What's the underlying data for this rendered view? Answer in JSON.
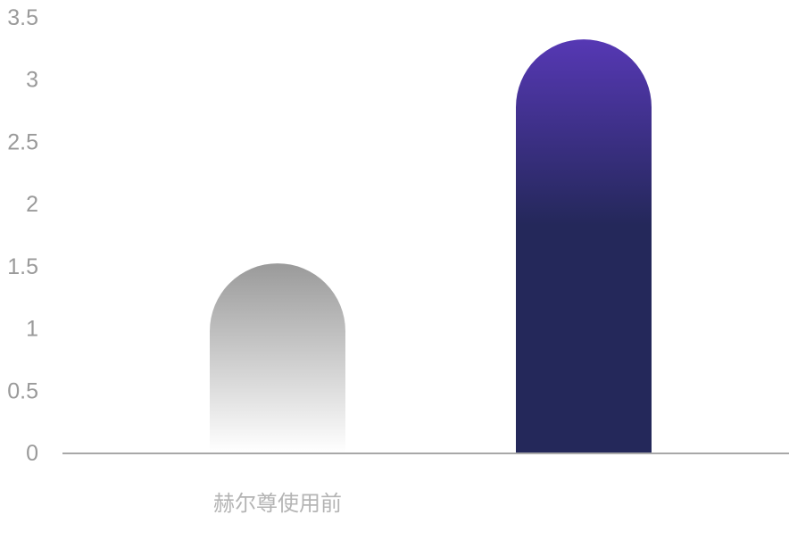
{
  "chart_data": {
    "type": "bar",
    "categories": [
      "赫尔尊使用前",
      ""
    ],
    "values": [
      1.52,
      3.32
    ],
    "ylim": [
      0,
      3.5
    ],
    "yticks": [
      "0",
      "0.5",
      "1",
      "1.5",
      "2",
      "2.5",
      "3",
      "3.5"
    ],
    "grid": false,
    "colors": {
      "bar_1_top": "#9a9a9a",
      "bar_1_bottom": "#ffffff",
      "bar_2_top": "#5638b4",
      "bar_2_bottom": "#24285a",
      "axis": "#a8a8a8",
      "tick_text": "#9a9a9a",
      "category_text": "#b4b4b4"
    }
  }
}
